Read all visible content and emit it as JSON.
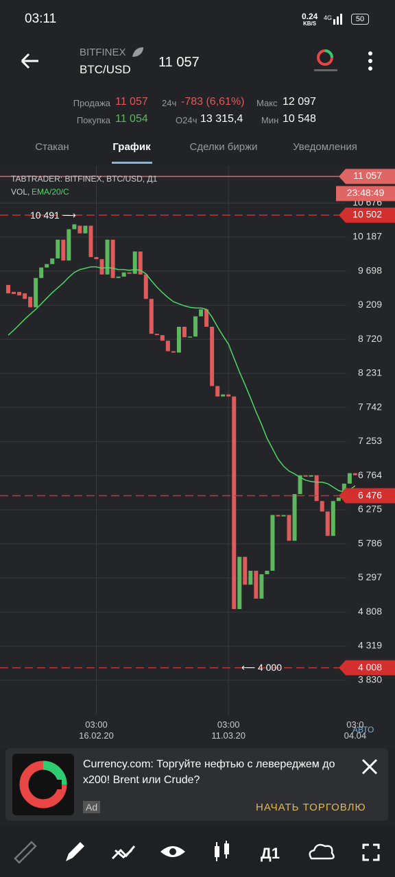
{
  "status_bar": {
    "time": "03:11",
    "net_speed": "0.24",
    "net_unit": "KB/S",
    "battery": "50"
  },
  "header": {
    "exchange": "BITFINEX",
    "pair": "BTC/USD",
    "price": "11 057"
  },
  "stats": {
    "sell_label": "Продажа",
    "sell": "11 057",
    "change_label": "24ч",
    "change": "-783 (6,61%)",
    "high_label": "Макс",
    "high": "12 097",
    "buy_label": "Покупка",
    "buy": "11 054",
    "volume_label": "O24ч",
    "volume": "13 315,4",
    "low_label": "Мин",
    "low": "10 548"
  },
  "tabs": [
    "Стакан",
    "График",
    "Сделки биржи",
    "Уведомления"
  ],
  "chart_data": {
    "type": "candlestick",
    "title": "TABTRADER: BITFINEX, BTC/USD, Д1",
    "volume_label": "VOL,",
    "ema_label": "EMA/20/C",
    "up_color": "#5cb85c",
    "down_color": "#e05a5a",
    "grid": true,
    "categories": [
      null,
      null,
      null,
      null,
      null,
      null,
      null,
      null,
      null,
      null,
      null,
      null,
      null,
      null,
      null,
      null,
      "03:00\n16.02.20",
      null,
      null,
      null,
      null,
      null,
      null,
      null,
      null,
      null,
      null,
      null,
      null,
      null,
      null,
      null,
      null,
      null,
      null,
      null,
      null,
      null,
      null,
      null,
      "03:00\n11.03.20",
      null,
      null,
      null,
      null,
      null,
      null,
      null,
      null,
      null,
      null,
      null,
      null,
      null,
      null,
      null,
      null,
      null,
      null,
      null,
      null,
      null,
      null,
      "03:0\n04.04"
    ],
    "open": [
      9500,
      9400,
      9400,
      9380,
      9330,
      9180,
      9600,
      9750,
      9800,
      9880,
      10150,
      9850,
      10300,
      10350,
      10240,
      10350,
      9900,
      9870,
      9650,
      10150,
      9600,
      9620,
      9680,
      9660,
      9980,
      9650,
      9300,
      8800,
      8780,
      8700,
      8550,
      8530,
      8900,
      8750,
      8760,
      9050,
      9150,
      8900,
      8050,
      7900,
      7930,
      7900,
      4850,
      5600,
      5200,
      5400,
      5000,
      5350,
      5400,
      6200,
      6180,
      6200,
      5830,
      6500,
      6770,
      6750,
      6770,
      6400,
      6250,
      5900,
      6400,
      6450,
      6650,
      6800
    ],
    "close": [
      9380,
      9370,
      9350,
      9300,
      9180,
      9600,
      9750,
      9800,
      9880,
      10150,
      9850,
      10300,
      10370,
      10240,
      10350,
      9900,
      9870,
      9650,
      10150,
      9600,
      9620,
      9680,
      9660,
      9980,
      9650,
      9300,
      8800,
      8780,
      8700,
      8550,
      8530,
      8900,
      8750,
      8760,
      9050,
      9150,
      8900,
      8050,
      7900,
      7930,
      7900,
      4850,
      5600,
      5200,
      5400,
      5000,
      5350,
      5400,
      6200,
      6180,
      6200,
      5830,
      6500,
      6770,
      6750,
      6770,
      6400,
      6250,
      5900,
      6400,
      6450,
      6650,
      6800,
      6770
    ],
    "ema": {
      "color": "#4cd964",
      "values": [
        8780,
        8850,
        8930,
        9010,
        9080,
        9150,
        9230,
        9310,
        9390,
        9460,
        9530,
        9610,
        9680,
        9720,
        9740,
        9760,
        9760,
        9740,
        9750,
        9740,
        9720,
        9720,
        9710,
        9720,
        9710,
        9660,
        9560,
        9470,
        9390,
        9320,
        9260,
        9230,
        9200,
        9180,
        9170,
        9170,
        9150,
        9040,
        8900,
        8770,
        8650,
        8450,
        8250,
        8070,
        7880,
        7680,
        7500,
        7300,
        7150,
        7000,
        6900,
        6830,
        6790,
        6740,
        6700,
        6680,
        6670,
        6670,
        6650,
        6600,
        6550,
        6530,
        6560,
        6620
      ]
    },
    "ylim": [
      3336,
      11180
    ],
    "yticks": [
      {
        "value": 3830,
        "label": "3 830"
      },
      {
        "value": 4319,
        "label": "4 319"
      },
      {
        "value": 4808,
        "label": "4 808"
      },
      {
        "value": 5297,
        "label": "5 297"
      },
      {
        "value": 5786,
        "label": "5 786"
      },
      {
        "value": 6275,
        "label": "6 275"
      },
      {
        "value": 6764,
        "label": "6 764"
      },
      {
        "value": 7253,
        "label": "7 253"
      },
      {
        "value": 7742,
        "label": "7 742"
      },
      {
        "value": 8231,
        "label": "8 231"
      },
      {
        "value": 8720,
        "label": "8 720"
      },
      {
        "value": 9209,
        "label": "9 209"
      },
      {
        "value": 9698,
        "label": "9 698"
      },
      {
        "value": 10187,
        "label": "10 187"
      },
      {
        "value": 10676,
        "label": "10 676"
      }
    ],
    "price_lines": [
      {
        "value": 11057,
        "label": "11 057",
        "color": "#e06666",
        "style": "solid"
      },
      {
        "value": 10502,
        "label": "10 502",
        "color": "#d32f2f",
        "style": "dashed"
      },
      {
        "value": 6476,
        "label": "6 476",
        "color": "#d32f2f",
        "style": "dashed"
      },
      {
        "value": 4008,
        "label": "4 008",
        "color": "#d32f2f",
        "style": "dashed"
      }
    ],
    "countdown": "23:48:49",
    "max_marker": {
      "value": 10491,
      "label": "10 491 ⟶"
    },
    "min_marker": {
      "value": 4000,
      "label": "⟵ 4 000"
    },
    "auto_label": "АВТО"
  },
  "ad": {
    "title": "Currency.com: Торгуйте нефтью с левереджем до x200! Brent или Crude?",
    "badge": "Ad",
    "button": "НАЧАТЬ ТОРГОВЛЮ"
  },
  "toolbar": {
    "timeframe": "Д1"
  }
}
